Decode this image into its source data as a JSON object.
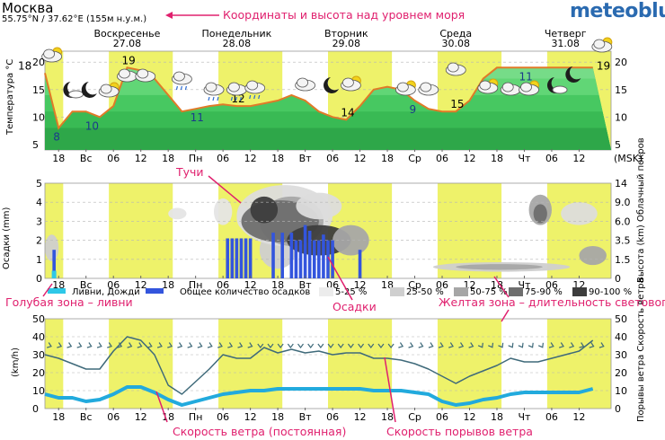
{
  "header": {
    "city": "Москва",
    "coords": "55.75°N / 37.62°E (155м н.у.м.)",
    "brand": "meteoblue"
  },
  "annotations": {
    "coords_note": "Координаты и высота над уровнем моря",
    "clouds": "Тучи",
    "precip": "Осадки",
    "blue_zone": "Голубая зона – ливни",
    "yellow_zone": "Желтая зона – длительность светового дня",
    "wind": "Скорость ветра (постоянная)",
    "gusts": "Скорость порывов ветра"
  },
  "colors": {
    "daylight": "#eef26a",
    "temp_line": "#e07a28",
    "precip_bar": "#3355dd",
    "showers": "#2ec8e8",
    "wind_line": "#22aadd",
    "gust_line": "#3f6a7a",
    "annotation": "#e0206e"
  },
  "chart_data": [
    {
      "type": "area",
      "panel": "temperature",
      "title": "",
      "ylabel": "Температура °C",
      "ylim": [
        4,
        22
      ],
      "yticks": [
        5,
        10,
        15,
        20
      ],
      "day_labels": [
        {
          "name": "Воскресенье",
          "date": "27.08",
          "highlight": true
        },
        {
          "name": "Понедельник",
          "date": "28.08",
          "highlight": false
        },
        {
          "name": "Вторник",
          "date": "29.08",
          "highlight": false
        },
        {
          "name": "Среда",
          "date": "30.08",
          "highlight": false
        },
        {
          "name": "Четверг",
          "date": "31.08",
          "highlight": false
        }
      ],
      "hours": [
        15,
        18,
        21,
        24,
        27,
        30,
        33,
        36,
        39,
        42,
        45,
        48,
        51,
        54,
        57,
        60,
        63,
        66,
        69,
        72,
        75,
        78,
        81,
        84,
        87,
        90,
        93,
        96,
        99,
        102,
        105,
        108,
        111,
        114,
        117,
        120,
        123,
        126,
        129,
        132,
        135
      ],
      "temperature": [
        18,
        8,
        11,
        11,
        10,
        12,
        19,
        18.5,
        17,
        14,
        11,
        11.5,
        12,
        12.3,
        12,
        12,
        12.5,
        13,
        14,
        13,
        11,
        10,
        9.5,
        12,
        15,
        15.5,
        15,
        13,
        11.5,
        11,
        11,
        13,
        17,
        19,
        19,
        19,
        19,
        19,
        19,
        19,
        19
      ],
      "labels": [
        {
          "text": "18",
          "kind": "max"
        },
        {
          "text": "8",
          "kind": "min"
        },
        {
          "text": "10",
          "kind": "min"
        },
        {
          "text": "19",
          "kind": "max"
        },
        {
          "text": "11",
          "kind": "min"
        },
        {
          "text": "12",
          "kind": "max"
        },
        {
          "text": "14",
          "kind": "max"
        },
        {
          "text": "9",
          "kind": "min"
        },
        {
          "text": "15",
          "kind": "max"
        },
        {
          "text": "11",
          "kind": "min"
        },
        {
          "text": "19",
          "kind": "max"
        }
      ],
      "right_axis_unit": "(MSK)"
    },
    {
      "type": "bar",
      "panel": "precipitation",
      "ylabel_left": "Осадки (mm)",
      "ylabel_right": "Высота (km) Облачный покров",
      "ylim": [
        0,
        5
      ],
      "yticks_left": [
        0,
        1,
        2,
        3,
        4,
        5
      ],
      "yticks_right": [
        "0",
        "1.5",
        "3.5",
        "6.0",
        "9.0",
        "14"
      ],
      "legend": [
        "Ливни, Дожди",
        "Общее количество осадков",
        "5-25 %",
        "25-50 %",
        "50-75 %",
        "75-90 %",
        "90-100 %"
      ],
      "bars": [
        {
          "hour": 17,
          "value": 1.5
        },
        {
          "hour": 55,
          "value": 2.1
        },
        {
          "hour": 56,
          "value": 2.1
        },
        {
          "hour": 57,
          "value": 2.1
        },
        {
          "hour": 58,
          "value": 2.1
        },
        {
          "hour": 59,
          "value": 2.1
        },
        {
          "hour": 60,
          "value": 2.1
        },
        {
          "hour": 65,
          "value": 2.4
        },
        {
          "hour": 67,
          "value": 2.4
        },
        {
          "hour": 69,
          "value": 2.4
        },
        {
          "hour": 70,
          "value": 2.0
        },
        {
          "hour": 71,
          "value": 2.0
        },
        {
          "hour": 72,
          "value": 2.8
        },
        {
          "hour": 73,
          "value": 2.5
        },
        {
          "hour": 74,
          "value": 2.0
        },
        {
          "hour": 75,
          "value": 2.0
        },
        {
          "hour": 76,
          "value": 2.3
        },
        {
          "hour": 77,
          "value": 2.0
        },
        {
          "hour": 78,
          "value": 2.0
        },
        {
          "hour": 84,
          "value": 1.5
        }
      ]
    },
    {
      "type": "line",
      "panel": "wind",
      "ylabel_left": "(km/h)",
      "ylabel_right": "Порывы ветра Скорость ветра",
      "ylim": [
        0,
        50
      ],
      "yticks": [
        0,
        10,
        20,
        30,
        40,
        50
      ],
      "hours": [
        15,
        18,
        21,
        24,
        27,
        30,
        33,
        36,
        39,
        42,
        45,
        48,
        51,
        54,
        57,
        60,
        63,
        66,
        69,
        72,
        75,
        78,
        81,
        84,
        87,
        90,
        93,
        96,
        99,
        102,
        105,
        108,
        111,
        114,
        117,
        120,
        123,
        126,
        129,
        132,
        135
      ],
      "series": [
        {
          "name": "Скорость ветра (постоянная)",
          "values": [
            8,
            6,
            6,
            4,
            5,
            8,
            12,
            12,
            9,
            5,
            2,
            4,
            6,
            8,
            9,
            10,
            10,
            11,
            11,
            11,
            11,
            11,
            11,
            11,
            10,
            10,
            10,
            9,
            8,
            4,
            2,
            3,
            5,
            6,
            8,
            9,
            9,
            9,
            9,
            9,
            11
          ]
        },
        {
          "name": "Скорость порывов ветра",
          "values": [
            30,
            28,
            25,
            22,
            22,
            32,
            40,
            38,
            30,
            13,
            8,
            15,
            22,
            30,
            28,
            28,
            34,
            31,
            33,
            31,
            32,
            30,
            31,
            31,
            28,
            28,
            27,
            25,
            22,
            18,
            14,
            18,
            21,
            24,
            28,
            26,
            26,
            28,
            30,
            32,
            38
          ]
        }
      ],
      "direction_arrows": "row at ~35 km/h"
    }
  ],
  "time_axis": {
    "labels": [
      "18",
      "Вс",
      "06",
      "12",
      "18",
      "Пн",
      "06",
      "12",
      "18",
      "Вт",
      "06",
      "12",
      "18",
      "Ср",
      "06",
      "12",
      "18",
      "Чт",
      "06",
      "12"
    ],
    "label_hours": [
      18,
      24,
      30,
      36,
      42,
      48,
      54,
      60,
      66,
      72,
      78,
      84,
      90,
      96,
      102,
      108,
      114,
      120,
      126,
      132
    ],
    "tz": "(MSK)",
    "daylight": [
      [
        5,
        19
      ],
      [
        29,
        43
      ],
      [
        53,
        67
      ],
      [
        77,
        91
      ],
      [
        101,
        115
      ],
      [
        125,
        139
      ]
    ]
  },
  "weather_icons": [
    "partly-cloudy-icon",
    "moon-cloud-icon",
    "moon-icon",
    "partly-cloudy-icon",
    "cloud-icon",
    "cloud-icon",
    "cloud-rain-icon",
    "cloud-rain-icon",
    "cloud-rain-icon",
    "cloud-rain-icon",
    "cloud-icon",
    "moon-icon",
    "partly-cloudy-icon",
    "partly-cloudy-icon",
    "cloud-icon",
    "cloud-icon",
    "partly-cloudy-icon",
    "cloud-icon"
  ]
}
